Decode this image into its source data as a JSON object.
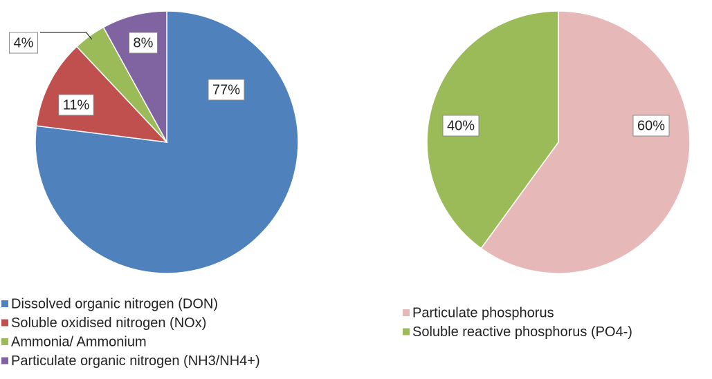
{
  "chart_data": [
    {
      "type": "pie",
      "categories": [
        "Dissolved organic nitrogen (DON)",
        "Soluble oxidised nitrogen (NOx)",
        "Ammonia/ Ammonium",
        "Particulate organic nitrogen (NH3/NH4+)"
      ],
      "values": [
        77,
        11,
        4,
        8
      ],
      "value_labels": [
        "77%",
        "11%",
        "4%",
        "8%"
      ],
      "colors": [
        "#4f81bd",
        "#c0504d",
        "#9bbb59",
        "#8064a2"
      ]
    },
    {
      "type": "pie",
      "categories": [
        "Particulate phosphorus",
        "Soluble reactive phosphorus (PO4-)"
      ],
      "values": [
        60,
        40
      ],
      "value_labels": [
        "60%",
        "40%"
      ],
      "colors": [
        "#e6b9b8",
        "#9bbb59"
      ]
    }
  ]
}
